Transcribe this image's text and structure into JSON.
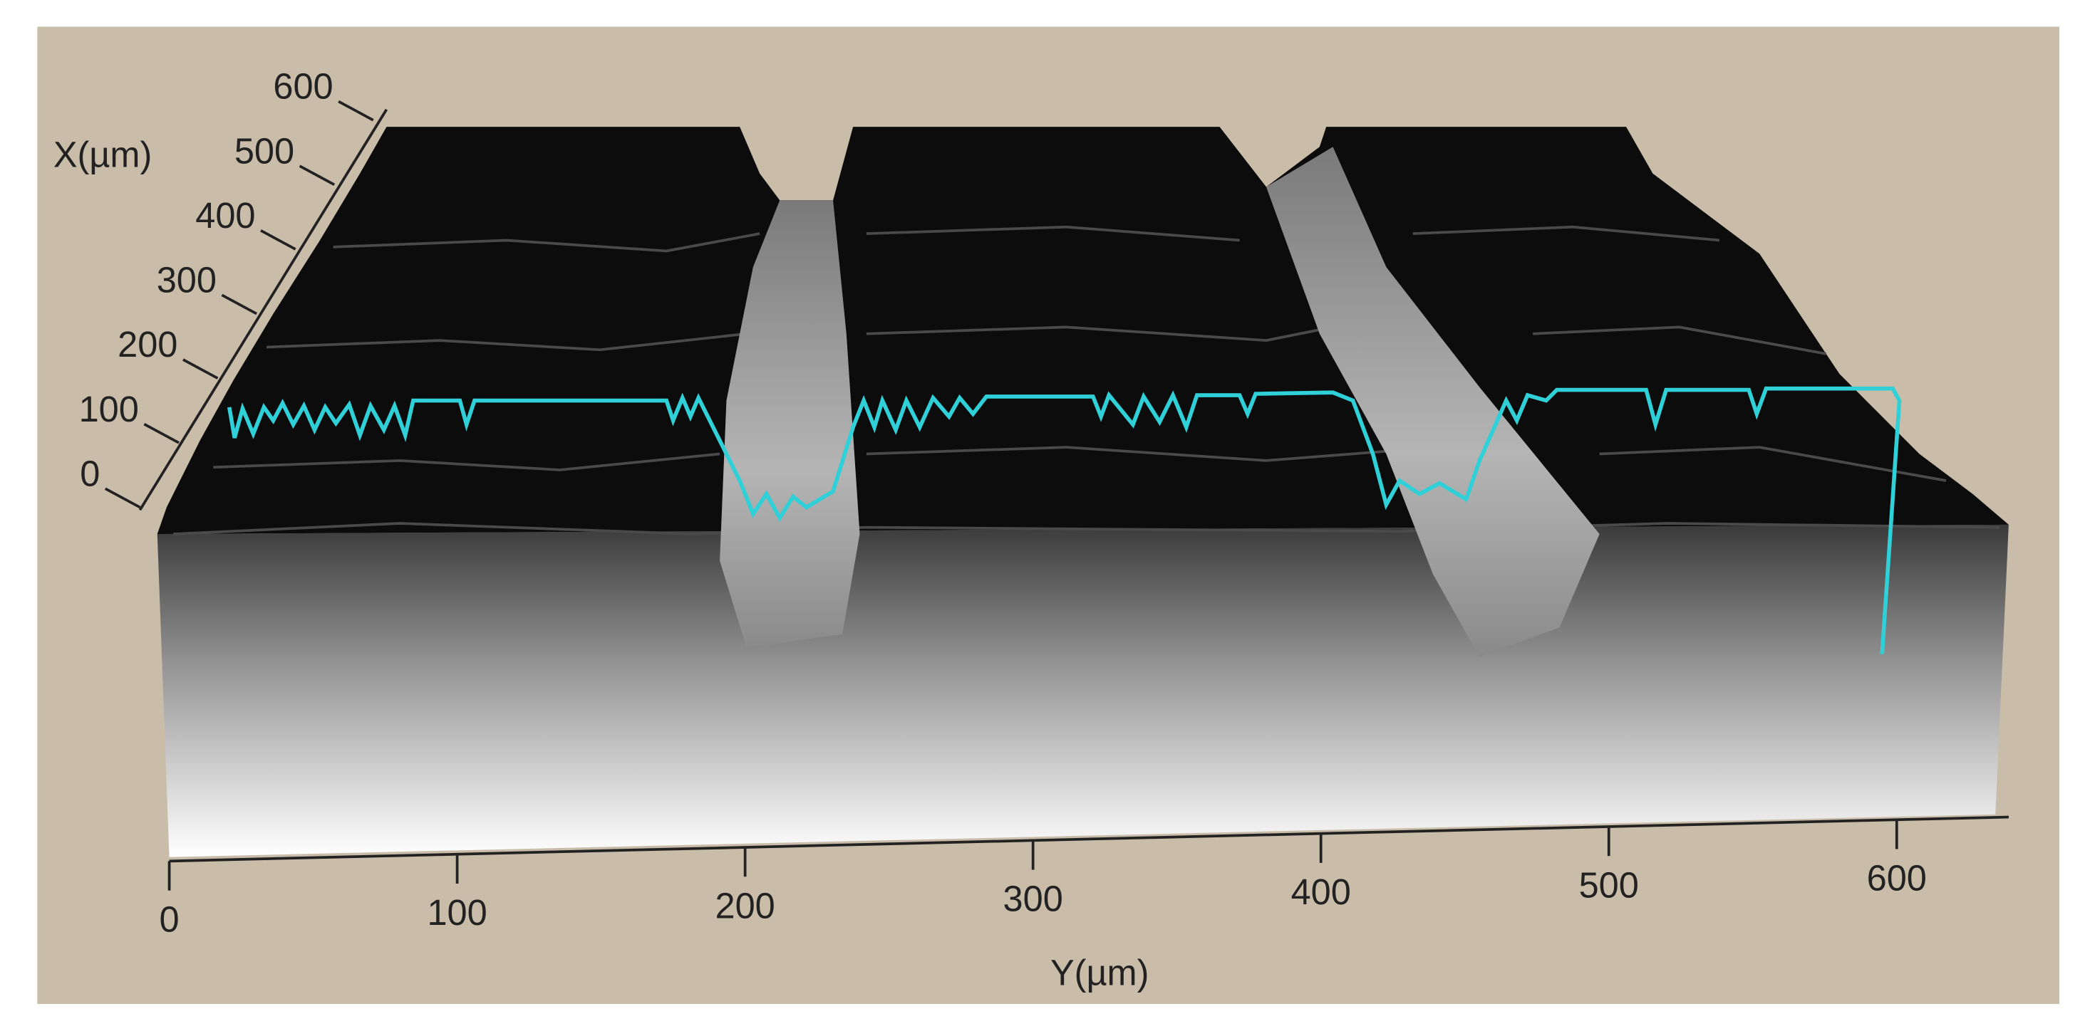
{
  "x_axis": {
    "title": "X(µm)",
    "ticks": [
      0,
      100,
      200,
      300,
      400,
      500,
      600
    ]
  },
  "y_axis": {
    "title": "Y(µm)",
    "ticks": [
      0,
      100,
      200,
      300,
      400,
      500,
      600
    ]
  }
}
